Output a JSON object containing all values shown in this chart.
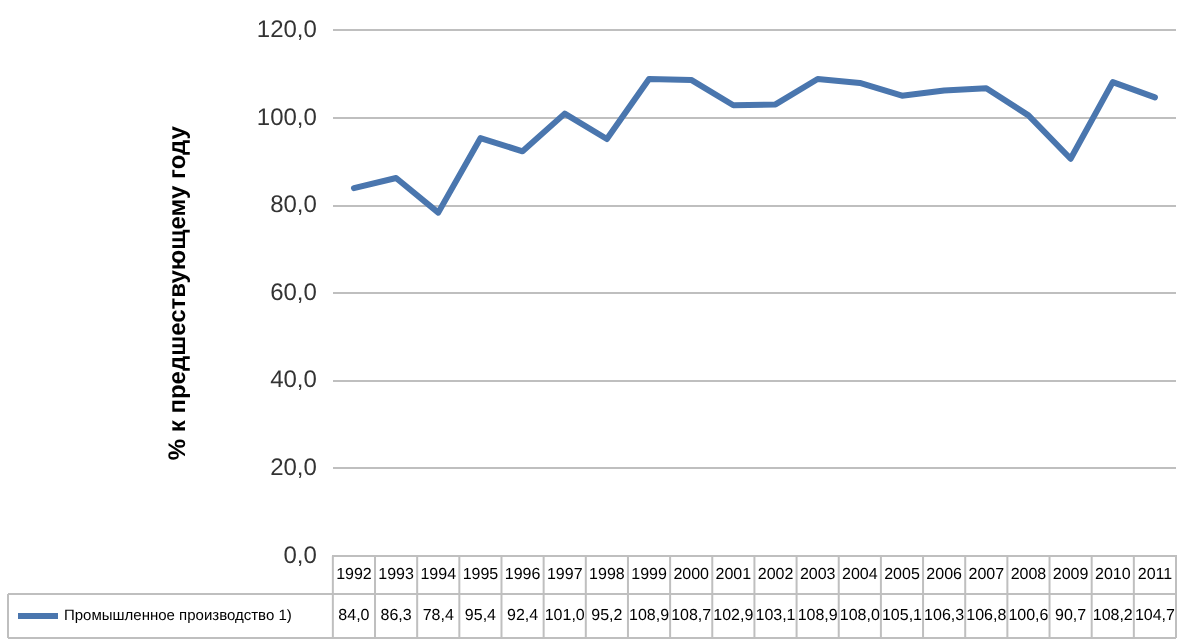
{
  "chart_data": {
    "type": "line",
    "ylabel": "% к предшествующему году",
    "categories": [
      "1992",
      "1993",
      "1994",
      "1995",
      "1996",
      "1997",
      "1998",
      "1999",
      "2000",
      "2001",
      "2002",
      "2003",
      "2004",
      "2005",
      "2006",
      "2007",
      "2008",
      "2009",
      "2010",
      "2011"
    ],
    "series": [
      {
        "name": "Промышленное производство 1)",
        "color": "#4a76ae",
        "values": [
          84.0,
          86.3,
          78.4,
          95.4,
          92.4,
          101.0,
          95.2,
          108.9,
          108.7,
          102.9,
          103.1,
          108.9,
          108.0,
          105.1,
          106.3,
          106.8,
          100.6,
          90.7,
          108.2,
          104.7
        ],
        "value_labels": [
          "84,0",
          "86,3",
          "78,4",
          "95,4",
          "92,4",
          "101,0",
          "95,2",
          "108,9",
          "108,7",
          "102,9",
          "103,1",
          "108,9",
          "108,0",
          "105,1",
          "106,3",
          "106,8",
          "100,6",
          "90,7",
          "108,2",
          "104,7"
        ]
      }
    ],
    "ylim": [
      0,
      120
    ],
    "yticks": [
      {
        "value": 0,
        "label": "0,0"
      },
      {
        "value": 20,
        "label": "20,0"
      },
      {
        "value": 40,
        "label": "40,0"
      },
      {
        "value": 60,
        "label": "60,0"
      },
      {
        "value": 80,
        "label": "80,0"
      },
      {
        "value": 100,
        "label": "100,0"
      },
      {
        "value": 120,
        "label": "120,0"
      }
    ],
    "grid": "y",
    "legend": "bottom",
    "marker": "none",
    "line_style": "solid"
  }
}
